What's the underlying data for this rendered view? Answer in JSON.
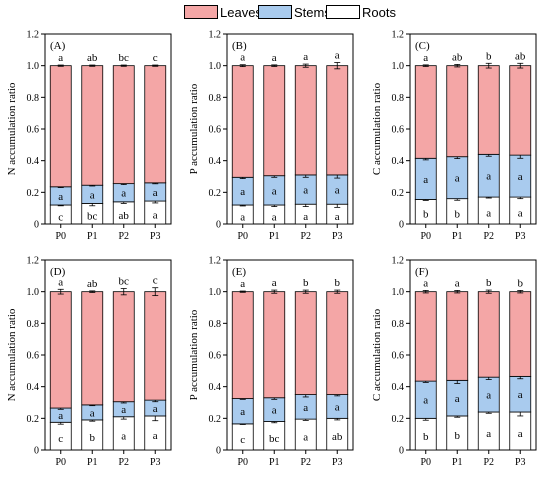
{
  "legend": {
    "items": [
      {
        "label": "Leaves",
        "color": "#f4a6a6"
      },
      {
        "label": "Stems",
        "color": "#a9cbee"
      },
      {
        "label": "Roots",
        "color": "#ffffff"
      }
    ]
  },
  "chart_data": [
    {
      "type": "bar",
      "panel_label": "(A)",
      "ylabel": "N accumulation ratio",
      "categories": [
        "P0",
        "P1",
        "P2",
        "P3"
      ],
      "ylim": [
        0,
        1.2
      ],
      "yticks": [
        "0",
        "0.2",
        "0.4",
        "0.6",
        "0.8",
        "1.0",
        "1.2"
      ],
      "stacked": true,
      "series": [
        {
          "name": "Roots",
          "values": [
            0.12,
            0.13,
            0.14,
            0.145
          ],
          "errors": [
            0.005,
            0.015,
            0.01,
            0.012
          ],
          "letters": [
            "c",
            "bc",
            "ab",
            "a"
          ]
        },
        {
          "name": "Stems",
          "values": [
            0.115,
            0.115,
            0.115,
            0.115
          ],
          "errors": [
            0.005,
            0.005,
            0.006,
            0.006
          ],
          "letters": [
            "a",
            "a",
            "a",
            "a"
          ]
        },
        {
          "name": "Leaves",
          "values": [
            0.765,
            0.755,
            0.745,
            0.74
          ],
          "errors": [
            0.004,
            0.004,
            0.004,
            0.004
          ],
          "letters": [
            "a",
            "ab",
            "bc",
            "c"
          ]
        }
      ]
    },
    {
      "type": "bar",
      "panel_label": "(B)",
      "ylabel": "P accumulation ratio",
      "categories": [
        "P0",
        "P1",
        "P2",
        "P3"
      ],
      "ylim": [
        0,
        1.2
      ],
      "yticks": [
        "0",
        "0.2",
        "0.4",
        "0.6",
        "0.8",
        "1.0",
        "1.2"
      ],
      "stacked": true,
      "series": [
        {
          "name": "Roots",
          "values": [
            0.12,
            0.12,
            0.125,
            0.125
          ],
          "errors": [
            0.006,
            0.01,
            0.015,
            0.02
          ],
          "letters": [
            "a",
            "a",
            "a",
            "a"
          ]
        },
        {
          "name": "Stems",
          "values": [
            0.175,
            0.185,
            0.185,
            0.185
          ],
          "errors": [
            0.008,
            0.01,
            0.015,
            0.02
          ],
          "letters": [
            "a",
            "a",
            "a",
            "a"
          ]
        },
        {
          "name": "Leaves",
          "values": [
            0.705,
            0.695,
            0.69,
            0.69
          ],
          "errors": [
            0.006,
            0.005,
            0.01,
            0.02
          ],
          "letters": [
            "a",
            "a",
            "a",
            "a"
          ]
        }
      ]
    },
    {
      "type": "bar",
      "panel_label": "(C)",
      "ylabel": "C accumulation ratio",
      "categories": [
        "P0",
        "P1",
        "P2",
        "P3"
      ],
      "ylim": [
        0,
        1.2
      ],
      "yticks": [
        "0",
        "0.2",
        "0.4",
        "0.6",
        "0.8",
        "1.0",
        "1.2"
      ],
      "stacked": true,
      "series": [
        {
          "name": "Roots",
          "values": [
            0.155,
            0.16,
            0.17,
            0.17
          ],
          "errors": [
            0.006,
            0.01,
            0.006,
            0.01
          ],
          "letters": [
            "b",
            "b",
            "a",
            "a"
          ]
        },
        {
          "name": "Stems",
          "values": [
            0.26,
            0.265,
            0.27,
            0.265
          ],
          "errors": [
            0.01,
            0.012,
            0.012,
            0.02
          ],
          "letters": [
            "a",
            "a",
            "a",
            "a"
          ]
        },
        {
          "name": "Leaves",
          "values": [
            0.585,
            0.575,
            0.56,
            0.565
          ],
          "errors": [
            0.005,
            0.008,
            0.015,
            0.015
          ],
          "letters": [
            "a",
            "ab",
            "b",
            "ab"
          ]
        }
      ]
    },
    {
      "type": "bar",
      "panel_label": "(D)",
      "ylabel": "N accumulation ratio",
      "categories": [
        "P0",
        "P1",
        "P2",
        "P3"
      ],
      "ylim": [
        0,
        1.2
      ],
      "yticks": [
        "0",
        "0.2",
        "0.4",
        "0.6",
        "0.8",
        "1.0",
        "1.2"
      ],
      "stacked": true,
      "series": [
        {
          "name": "Roots",
          "values": [
            0.175,
            0.19,
            0.21,
            0.215
          ],
          "errors": [
            0.012,
            0.008,
            0.015,
            0.03
          ],
          "letters": [
            "c",
            "b",
            "a",
            "a"
          ]
        },
        {
          "name": "Stems",
          "values": [
            0.09,
            0.095,
            0.095,
            0.1
          ],
          "errors": [
            0.008,
            0.005,
            0.008,
            0.01
          ],
          "letters": [
            "a",
            "a",
            "a",
            "a"
          ]
        },
        {
          "name": "Leaves",
          "values": [
            0.735,
            0.715,
            0.695,
            0.685
          ],
          "errors": [
            0.015,
            0.005,
            0.02,
            0.025
          ],
          "letters": [
            "a",
            "ab",
            "bc",
            "c"
          ]
        }
      ]
    },
    {
      "type": "bar",
      "panel_label": "(E)",
      "ylabel": "P accumulation ratio",
      "categories": [
        "P0",
        "P1",
        "P2",
        "P3"
      ],
      "ylim": [
        0,
        1.2
      ],
      "yticks": [
        "0",
        "0.2",
        "0.4",
        "0.6",
        "0.8",
        "1.0",
        "1.2"
      ],
      "stacked": true,
      "series": [
        {
          "name": "Roots",
          "values": [
            0.165,
            0.18,
            0.195,
            0.2
          ],
          "errors": [
            0.004,
            0.008,
            0.008,
            0.01
          ],
          "letters": [
            "c",
            "bc",
            "a",
            "ab"
          ]
        },
        {
          "name": "Stems",
          "values": [
            0.16,
            0.15,
            0.155,
            0.15
          ],
          "errors": [
            0.005,
            0.01,
            0.015,
            0.008
          ],
          "letters": [
            "a",
            "a",
            "a",
            "a"
          ]
        },
        {
          "name": "Leaves",
          "values": [
            0.675,
            0.67,
            0.65,
            0.65
          ],
          "errors": [
            0.004,
            0.01,
            0.01,
            0.01
          ],
          "letters": [
            "a",
            "a",
            "b",
            "b"
          ]
        }
      ]
    },
    {
      "type": "bar",
      "panel_label": "(F)",
      "ylabel": "C accumulation ratio",
      "categories": [
        "P0",
        "P1",
        "P2",
        "P3"
      ],
      "ylim": [
        0,
        1.2
      ],
      "yticks": [
        "0",
        "0.2",
        "0.4",
        "0.6",
        "0.8",
        "1.0",
        "1.2"
      ],
      "stacked": true,
      "series": [
        {
          "name": "Roots",
          "values": [
            0.2,
            0.215,
            0.24,
            0.24
          ],
          "errors": [
            0.012,
            0.008,
            0.008,
            0.025
          ],
          "letters": [
            "b",
            "b",
            "a",
            "a"
          ]
        },
        {
          "name": "Stems",
          "values": [
            0.235,
            0.225,
            0.22,
            0.225
          ],
          "errors": [
            0.008,
            0.02,
            0.015,
            0.015
          ],
          "letters": [
            "a",
            "a",
            "a",
            "a"
          ]
        },
        {
          "name": "Leaves",
          "values": [
            0.565,
            0.56,
            0.54,
            0.535
          ],
          "errors": [
            0.008,
            0.008,
            0.01,
            0.008
          ],
          "letters": [
            "a",
            "a",
            "b",
            "b"
          ]
        }
      ]
    }
  ]
}
